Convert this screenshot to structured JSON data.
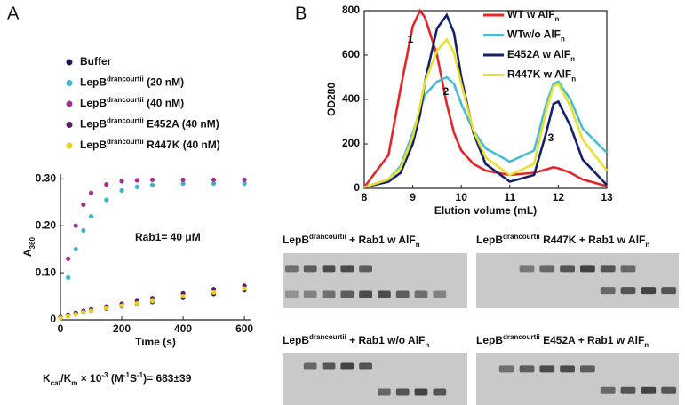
{
  "panel_labels": [
    "A",
    "B"
  ],
  "chart_data": [
    {
      "type": "scatter",
      "xlabel": "Time (s)",
      "ylabel": [
        "A",
        {
          "sub": "360"
        }
      ],
      "annotation": "Rab1= 40 μM",
      "caption": [
        "K",
        {
          "sub": "cat"
        },
        "/K",
        {
          "sub": "m"
        },
        " × 10",
        {
          "sup": "-3"
        },
        " (M",
        {
          "sup": "-1"
        },
        "S",
        {
          "sup": "-1"
        },
        ")= 683±39"
      ],
      "x": [
        0,
        25,
        50,
        75,
        100,
        150,
        200,
        250,
        300,
        400,
        500,
        600
      ],
      "xlim": [
        0,
        620
      ],
      "xticks": [
        0,
        200,
        400,
        600
      ],
      "ylim": [
        0,
        0.31
      ],
      "yticks": [
        0,
        {
          "value": 0.1,
          "label": "0.10"
        },
        {
          "value": 0.2,
          "label": "0.20"
        },
        {
          "value": 0.3,
          "label": "0.30"
        }
      ],
      "series": [
        {
          "name": [
            "Buffer"
          ],
          "color": "#1c1c50",
          "values": [
            0.005,
            0.01,
            0.013,
            0.016,
            0.019,
            0.024,
            0.029,
            0.034,
            0.038,
            0.047,
            0.055,
            0.063
          ]
        },
        {
          "name": [
            "LepB",
            {
              "sup": "drancourtii"
            },
            " (20 nM)"
          ],
          "color": "#3fb3c9",
          "values": [
            0.005,
            0.09,
            0.15,
            0.19,
            0.22,
            0.255,
            0.275,
            0.283,
            0.287,
            0.29,
            0.29,
            0.29
          ]
        },
        {
          "name": [
            "LepB",
            {
              "sup": "drancourtii"
            },
            " (40 nM)"
          ],
          "color": "#a2338c",
          "values": [
            0.005,
            0.13,
            0.2,
            0.245,
            0.27,
            0.288,
            0.295,
            0.297,
            0.298,
            0.298,
            0.298,
            0.298
          ]
        },
        {
          "name": [
            "LepB",
            {
              "sup": "drancourtii"
            },
            " E452A (40 nM)"
          ],
          "color": "#5a1d5e",
          "values": [
            0.006,
            0.011,
            0.015,
            0.019,
            0.022,
            0.028,
            0.034,
            0.04,
            0.046,
            0.056,
            0.065,
            0.072
          ]
        },
        {
          "name": [
            "LepB",
            {
              "sup": "drancourtii"
            },
            " R447K (40 nM)"
          ],
          "color": "#e6cf1e",
          "values": [
            0.004,
            0.008,
            0.012,
            0.016,
            0.019,
            0.025,
            0.03,
            0.035,
            0.04,
            0.05,
            0.058,
            0.066
          ]
        }
      ]
    },
    {
      "type": "line",
      "xlabel": "Elution volume (mL)",
      "ylabel": "OD280",
      "peak_labels": [
        "1",
        "2",
        "3"
      ],
      "x": [
        8,
        8.5,
        8.75,
        9,
        9.15,
        9.25,
        9.5,
        9.7,
        9.85,
        10,
        10.25,
        10.5,
        11,
        11.5,
        11.75,
        11.9,
        12,
        12.25,
        12.5,
        13
      ],
      "xlim": [
        8,
        13
      ],
      "xticks": [
        8,
        9,
        10,
        11,
        12,
        13
      ],
      "ylim": [
        0,
        800
      ],
      "yticks": [
        0,
        200,
        400,
        600,
        800
      ],
      "series": [
        {
          "name": [
            "WT w AlF",
            {
              "sub": "n"
            }
          ],
          "color": "#e3262a",
          "values": [
            5,
            150,
            450,
            730,
            800,
            770,
            600,
            380,
            250,
            170,
            110,
            80,
            60,
            70,
            85,
            95,
            90,
            70,
            40,
            10
          ]
        },
        {
          "name": [
            "WTw/o AlF",
            {
              "sub": "n"
            }
          ],
          "color": "#4bbcd0",
          "values": [
            5,
            40,
            100,
            250,
            350,
            420,
            480,
            500,
            470,
            380,
            260,
            180,
            120,
            170,
            380,
            470,
            480,
            400,
            270,
            160
          ]
        },
        {
          "name": [
            "E452A w AlF",
            {
              "sub": "n"
            }
          ],
          "color": "#15206a",
          "values": [
            5,
            30,
            70,
            200,
            330,
            480,
            720,
            780,
            700,
            500,
            250,
            110,
            30,
            60,
            250,
            380,
            390,
            280,
            130,
            15
          ]
        },
        {
          "name": [
            "R447K w AlF",
            {
              "sub": "n"
            }
          ],
          "color": "#e8e030",
          "values": [
            5,
            40,
            90,
            230,
            370,
            480,
            620,
            670,
            610,
            470,
            260,
            140,
            60,
            110,
            350,
            460,
            470,
            370,
            220,
            80
          ]
        }
      ]
    }
  ],
  "gels": [
    {
      "caption": [
        "LepB",
        {
          "sup": "drancourtii"
        },
        " + Rab1 w AlF",
        {
          "sub": "n"
        }
      ]
    },
    {
      "caption": [
        "LepB",
        {
          "sup": "drancourtii"
        },
        " R447K + Rab1 w AlF",
        {
          "sub": "n"
        }
      ]
    },
    {
      "caption": [
        "LepB",
        {
          "sup": "drancourtii"
        },
        " + Rab1 w/o AlF",
        {
          "sub": "n"
        }
      ]
    },
    {
      "caption": [
        "LepB",
        {
          "sup": "drancourtii"
        },
        " E452A + Rab1 w AlF",
        {
          "sub": "n"
        }
      ]
    }
  ]
}
